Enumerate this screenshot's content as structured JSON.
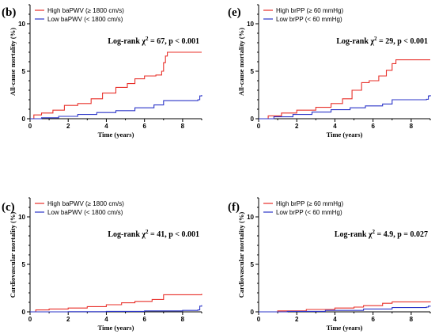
{
  "chart_data": [
    {
      "type": "line",
      "panel": "(b)",
      "ylabel": "All-cause mortality (%)",
      "xlabel": "Time (years)",
      "xlim": [
        0,
        9
      ],
      "ylim": [
        0,
        12
      ],
      "xticks": [
        0,
        2,
        4,
        6,
        8
      ],
      "yticks": [
        0,
        5,
        10
      ],
      "annotation": "Log-rank χ² = 67, p < 0.001",
      "legend_position": "top-left",
      "series": [
        {
          "name": "High baPWV (≥ 1800 cm/s)",
          "color": "#e8302a",
          "points": [
            [
              0,
              0
            ],
            [
              0.2,
              0.4
            ],
            [
              0.6,
              0.6
            ],
            [
              1.2,
              0.9
            ],
            [
              1.8,
              1.4
            ],
            [
              2.5,
              1.6
            ],
            [
              3.2,
              2.1
            ],
            [
              3.8,
              2.7
            ],
            [
              4.5,
              3.3
            ],
            [
              5.1,
              3.7
            ],
            [
              5.5,
              4.2
            ],
            [
              6.0,
              4.5
            ],
            [
              6.6,
              4.6
            ],
            [
              6.9,
              5.0
            ],
            [
              7.0,
              5.9
            ],
            [
              7.1,
              6.6
            ],
            [
              7.2,
              7.0
            ],
            [
              9,
              7.0
            ]
          ]
        },
        {
          "name": "Low baPWV (< 1800 cm/s)",
          "color": "#2b35c8",
          "points": [
            [
              0,
              0
            ],
            [
              0.6,
              0.1
            ],
            [
              1.5,
              0.25
            ],
            [
              2.5,
              0.45
            ],
            [
              3.5,
              0.65
            ],
            [
              4.5,
              0.85
            ],
            [
              5.5,
              1.15
            ],
            [
              6.5,
              1.45
            ],
            [
              7.0,
              1.9
            ],
            [
              8.8,
              2.0
            ],
            [
              8.9,
              2.4
            ],
            [
              9,
              2.5
            ]
          ]
        }
      ]
    },
    {
      "type": "line",
      "panel": "(e)",
      "ylabel": "All-cause mortality (%)",
      "xlabel": "Time (years)",
      "xlim": [
        0,
        9
      ],
      "ylim": [
        0,
        12
      ],
      "xticks": [
        0,
        2,
        4,
        6,
        8
      ],
      "yticks": [
        0,
        5,
        10
      ],
      "annotation": "Log-rank χ² = 29, p < 0.001",
      "legend_position": "top-left",
      "series": [
        {
          "name": "High brPP (≥ 60 mmHg)",
          "color": "#e8302a",
          "points": [
            [
              0,
              0
            ],
            [
              0.5,
              0.3
            ],
            [
              1.2,
              0.6
            ],
            [
              2.0,
              0.9
            ],
            [
              3.0,
              1.2
            ],
            [
              3.8,
              1.6
            ],
            [
              4.4,
              2.1
            ],
            [
              4.9,
              3.0
            ],
            [
              5.4,
              3.8
            ],
            [
              5.8,
              4.0
            ],
            [
              6.3,
              4.5
            ],
            [
              6.7,
              5.1
            ],
            [
              7.0,
              5.8
            ],
            [
              7.2,
              6.2
            ],
            [
              9,
              6.2
            ]
          ]
        },
        {
          "name": "Low brPP (< 60 mmHg)",
          "color": "#2b35c8",
          "points": [
            [
              0,
              0
            ],
            [
              0.8,
              0.2
            ],
            [
              1.8,
              0.45
            ],
            [
              2.8,
              0.7
            ],
            [
              3.8,
              0.95
            ],
            [
              4.8,
              1.15
            ],
            [
              5.6,
              1.35
            ],
            [
              6.5,
              1.55
            ],
            [
              7.0,
              2.0
            ],
            [
              8.8,
              2.05
            ],
            [
              8.9,
              2.4
            ],
            [
              9,
              2.5
            ]
          ]
        }
      ]
    },
    {
      "type": "line",
      "panel": "(c)",
      "ylabel": "Cardiovascular mortality (%)",
      "xlabel": "Time (years)",
      "xlim": [
        0,
        9
      ],
      "ylim": [
        0,
        12
      ],
      "xticks": [
        0,
        2,
        4,
        6,
        8
      ],
      "yticks": [
        0,
        5,
        10
      ],
      "annotation": "Log-rank χ² = 41, p < 0.001",
      "legend_position": "top-left",
      "series": [
        {
          "name": "High baPWV (≥ 1800 cm/s)",
          "color": "#e8302a",
          "points": [
            [
              0,
              0
            ],
            [
              0.3,
              0.2
            ],
            [
              1.0,
              0.3
            ],
            [
              2.0,
              0.4
            ],
            [
              3.0,
              0.55
            ],
            [
              4.0,
              0.75
            ],
            [
              4.8,
              0.95
            ],
            [
              5.5,
              1.1
            ],
            [
              6.4,
              1.3
            ],
            [
              7.0,
              1.8
            ],
            [
              9,
              1.9
            ]
          ]
        },
        {
          "name": "Low baPWV (< 1800 cm/s)",
          "color": "#2b35c8",
          "points": [
            [
              0,
              0
            ],
            [
              2.0,
              0.02
            ],
            [
              4.0,
              0.05
            ],
            [
              6.0,
              0.1
            ],
            [
              8.0,
              0.15
            ],
            [
              8.8,
              0.2
            ],
            [
              8.9,
              0.6
            ],
            [
              9,
              0.7
            ]
          ]
        }
      ]
    },
    {
      "type": "line",
      "panel": "(f)",
      "ylabel": "Cardiovascular mortality (%)",
      "xlabel": "Time (years)",
      "xlim": [
        0,
        9
      ],
      "ylim": [
        0,
        12
      ],
      "xticks": [
        0,
        2,
        4,
        6,
        8
      ],
      "yticks": [
        0,
        5,
        10
      ],
      "annotation": "Log-rank χ² = 4.9, p = 0.027",
      "legend_position": "top-left",
      "series": [
        {
          "name": "High brPP (≥ 60 mmHg)",
          "color": "#e8302a",
          "points": [
            [
              0,
              0
            ],
            [
              1.0,
              0.1
            ],
            [
              2.5,
              0.25
            ],
            [
              4.0,
              0.4
            ],
            [
              5.0,
              0.5
            ],
            [
              5.5,
              0.65
            ],
            [
              6.5,
              0.9
            ],
            [
              7.0,
              1.05
            ],
            [
              9,
              1.1
            ]
          ]
        },
        {
          "name": "Low brPP (< 60 mmHg)",
          "color": "#2b35c8",
          "points": [
            [
              0,
              0
            ],
            [
              1.5,
              0.05
            ],
            [
              3.5,
              0.15
            ],
            [
              5.5,
              0.3
            ],
            [
              7.0,
              0.45
            ],
            [
              8.8,
              0.5
            ],
            [
              8.9,
              0.6
            ],
            [
              9,
              0.65
            ]
          ]
        }
      ]
    }
  ]
}
